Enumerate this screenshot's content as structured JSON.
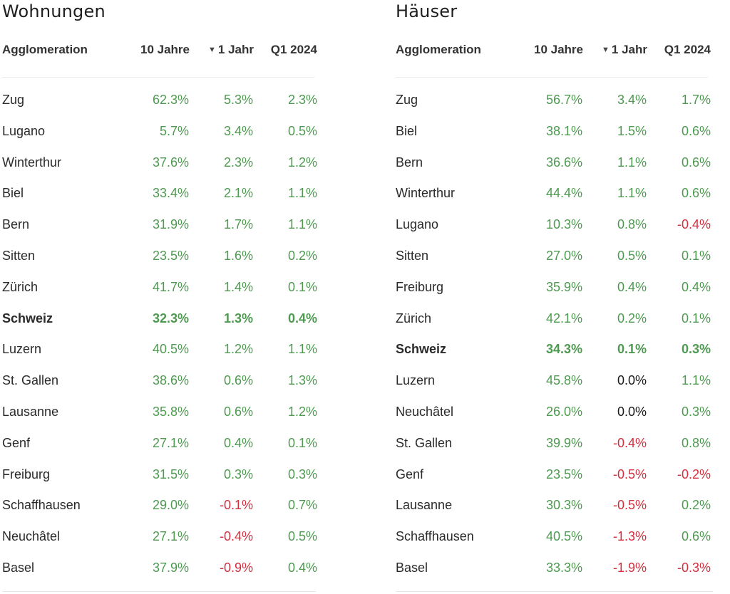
{
  "colors": {
    "positive": "#4e9a51",
    "negative": "#d32f3f",
    "zero": "#1a1a1a"
  },
  "tables": [
    {
      "title": "Wohnungen",
      "headers": {
        "name": "Agglomeration",
        "col1": "10 Jahre",
        "col2": "1 Jahr",
        "col3": "Q1 2024",
        "sort_icon": "sort-descending-icon",
        "sort_glyph": "▼"
      },
      "rows": [
        {
          "name": "Zug",
          "v1": "62.3%",
          "v2": "5.3%",
          "v3": "2.3%"
        },
        {
          "name": "Lugano",
          "v1": "5.7%",
          "v2": "3.4%",
          "v3": "0.5%"
        },
        {
          "name": "Winterthur",
          "v1": "37.6%",
          "v2": "2.3%",
          "v3": "1.2%"
        },
        {
          "name": "Biel",
          "v1": "33.4%",
          "v2": "2.1%",
          "v3": "1.1%"
        },
        {
          "name": "Bern",
          "v1": "31.9%",
          "v2": "1.7%",
          "v3": "1.1%"
        },
        {
          "name": "Sitten",
          "v1": "23.5%",
          "v2": "1.6%",
          "v3": "0.2%"
        },
        {
          "name": "Zürich",
          "v1": "41.7%",
          "v2": "1.4%",
          "v3": "0.1%"
        },
        {
          "name": "Schweiz",
          "v1": "32.3%",
          "v2": "1.3%",
          "v3": "0.4%",
          "bold": true
        },
        {
          "name": "Luzern",
          "v1": "40.5%",
          "v2": "1.2%",
          "v3": "1.1%"
        },
        {
          "name": "St. Gallen",
          "v1": "38.6%",
          "v2": "0.6%",
          "v3": "1.3%"
        },
        {
          "name": "Lausanne",
          "v1": "35.8%",
          "v2": "0.6%",
          "v3": "1.2%"
        },
        {
          "name": "Genf",
          "v1": "27.1%",
          "v2": "0.4%",
          "v3": "0.1%"
        },
        {
          "name": "Freiburg",
          "v1": "31.5%",
          "v2": "0.3%",
          "v3": "0.3%"
        },
        {
          "name": "Schaffhausen",
          "v1": "29.0%",
          "v2": "-0.1%",
          "v3": "0.7%"
        },
        {
          "name": "Neuchâtel",
          "v1": "27.1%",
          "v2": "-0.4%",
          "v3": "0.5%"
        },
        {
          "name": "Basel",
          "v1": "37.9%",
          "v2": "-0.9%",
          "v3": "0.4%"
        }
      ]
    },
    {
      "title": "Häuser",
      "headers": {
        "name": "Agglomeration",
        "col1": "10 Jahre",
        "col2": "1 Jahr",
        "col3": "Q1 2024",
        "sort_icon": "sort-descending-icon",
        "sort_glyph": "▼"
      },
      "rows": [
        {
          "name": "Zug",
          "v1": "56.7%",
          "v2": "3.4%",
          "v3": "1.7%"
        },
        {
          "name": "Biel",
          "v1": "38.1%",
          "v2": "1.5%",
          "v3": "0.6%"
        },
        {
          "name": "Bern",
          "v1": "36.6%",
          "v2": "1.1%",
          "v3": "0.6%"
        },
        {
          "name": "Winterthur",
          "v1": "44.4%",
          "v2": "1.1%",
          "v3": "0.6%"
        },
        {
          "name": "Lugano",
          "v1": "10.3%",
          "v2": "0.8%",
          "v3": "-0.4%"
        },
        {
          "name": "Sitten",
          "v1": "27.0%",
          "v2": "0.5%",
          "v3": "0.1%"
        },
        {
          "name": "Freiburg",
          "v1": "35.9%",
          "v2": "0.4%",
          "v3": "0.4%"
        },
        {
          "name": "Zürich",
          "v1": "42.1%",
          "v2": "0.2%",
          "v3": "0.1%"
        },
        {
          "name": "Schweiz",
          "v1": "34.3%",
          "v2": "0.1%",
          "v3": "0.3%",
          "bold": true
        },
        {
          "name": "Luzern",
          "v1": "45.8%",
          "v2": "0.0%",
          "v3": "1.1%"
        },
        {
          "name": "Neuchâtel",
          "v1": "26.0%",
          "v2": "0.0%",
          "v3": "0.3%"
        },
        {
          "name": "St. Gallen",
          "v1": "39.9%",
          "v2": "-0.4%",
          "v3": "0.8%"
        },
        {
          "name": "Genf",
          "v1": "23.5%",
          "v2": "-0.5%",
          "v3": "-0.2%"
        },
        {
          "name": "Lausanne",
          "v1": "30.3%",
          "v2": "-0.5%",
          "v3": "0.2%"
        },
        {
          "name": "Schaffhausen",
          "v1": "40.5%",
          "v2": "-1.3%",
          "v3": "0.6%"
        },
        {
          "name": "Basel",
          "v1": "33.3%",
          "v2": "-1.9%",
          "v3": "-0.3%"
        }
      ]
    }
  ]
}
